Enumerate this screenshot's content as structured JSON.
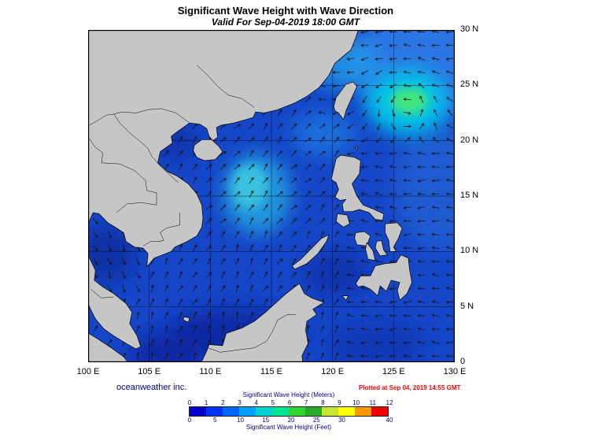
{
  "title": "Significant Wave Height with Wave Direction",
  "subtitle": "Valid For Sep-04-2019 18:00 GMT",
  "credits": {
    "company": "oceanweather inc.",
    "plotted": "Plotted at Sep 04, 2019 14:55 GMT",
    "plotted_color": "#ff0000"
  },
  "axes": {
    "lon_labels": [
      "100 E",
      "105 E",
      "110 E",
      "115 E",
      "120 E",
      "125 E",
      "130 E"
    ],
    "lat_labels": [
      "30 N",
      "25 N",
      "20 N",
      "15 N",
      "10 N",
      "5 N",
      "0"
    ]
  },
  "chart_data": {
    "type": "heatmap",
    "title": "Significant Wave Height with Wave Direction",
    "valid_time": "Sep-04-2019 18:00 GMT",
    "lon_range": [
      100,
      130
    ],
    "lat_range": [
      0,
      30
    ],
    "grid_step_deg": 5,
    "legend": {
      "meters_label": "Significant Wave Height (Meters)",
      "feet_label": "Significant Wave Height (Feet)",
      "meters_ticks": [
        0,
        1,
        2,
        3,
        4,
        5,
        6,
        7,
        8,
        9,
        10,
        11,
        12
      ],
      "feet_ticks": [
        0,
        5,
        10,
        15,
        20,
        25,
        30,
        40
      ],
      "feet_positions": [
        0,
        0.127,
        0.254,
        0.381,
        0.508,
        0.635,
        0.762,
        1.0
      ],
      "colors": [
        "#0000c8",
        "#0032f0",
        "#0064ff",
        "#00a0ff",
        "#00d2d2",
        "#00e696",
        "#32d232",
        "#28aa28",
        "#c8e632",
        "#ffff00",
        "#ff9600",
        "#f00000"
      ]
    },
    "features": [
      {
        "name": "pacific-high",
        "lon": 127.5,
        "lat": 27.0,
        "rx": 6.0,
        "ry": 5.0,
        "color": "#2e7ce8",
        "opacity": 0.9,
        "blur": "b2"
      },
      {
        "name": "pacific-mid",
        "lon": 129.0,
        "lat": 16.0,
        "rx": 4.0,
        "ry": 6.0,
        "color": "#2264d4",
        "opacity": 0.7,
        "blur": "b2"
      },
      {
        "name": "typhoon-halo",
        "lon": 126.1,
        "lat": 23.5,
        "rx": 3.4,
        "ry": 3.0,
        "color": "#00c8e8",
        "opacity": 0.95,
        "blur": "b2"
      },
      {
        "name": "typhoon-core",
        "lon": 126.3,
        "lat": 23.6,
        "rx": 1.5,
        "ry": 1.2,
        "color": "#46e87a",
        "opacity": 0.95,
        "blur": "b1"
      },
      {
        "name": "east-china-sea",
        "lon": 121.0,
        "lat": 27.0,
        "rx": 2.8,
        "ry": 2.4,
        "color": "#20a0e8",
        "opacity": 0.75,
        "blur": "b2"
      },
      {
        "name": "luzon-strait",
        "lon": 119.3,
        "lat": 20.6,
        "rx": 2.6,
        "ry": 2.0,
        "color": "#1e78e0",
        "opacity": 0.8,
        "blur": "b2"
      },
      {
        "name": "scs-central",
        "lon": 113.8,
        "lat": 15.2,
        "rx": 2.8,
        "ry": 3.6,
        "color": "#22a0e0",
        "opacity": 0.9,
        "blur": "b2"
      },
      {
        "name": "scs-central-core",
        "lon": 113.2,
        "lat": 15.9,
        "rx": 1.5,
        "ry": 2.0,
        "color": "#40cce0",
        "opacity": 0.8,
        "blur": "b1"
      },
      {
        "name": "gulf-of-thailand-low",
        "lon": 101.6,
        "lat": 9.8,
        "rx": 2.2,
        "ry": 2.6,
        "color": "#0c2ea0",
        "opacity": 0.9,
        "blur": "b2"
      },
      {
        "name": "gulf-of-tonkin-low",
        "lon": 107.2,
        "lat": 19.9,
        "rx": 1.8,
        "ry": 1.6,
        "color": "#0e30a8",
        "opacity": 0.85,
        "blur": "b2"
      },
      {
        "name": "borneo-coast-low",
        "lon": 112.0,
        "lat": 2.6,
        "rx": 5.5,
        "ry": 2.2,
        "color": "#0a28a0",
        "opacity": 0.9,
        "blur": "b2"
      },
      {
        "name": "sulu-sea-low",
        "lon": 120.3,
        "lat": 8.0,
        "rx": 2.6,
        "ry": 2.0,
        "color": "#102fa8",
        "opacity": 0.8,
        "blur": "b2"
      },
      {
        "name": "celebes-sea-low",
        "lon": 123.5,
        "lat": 1.5,
        "rx": 4.0,
        "ry": 2.2,
        "color": "#0f34b0",
        "opacity": 0.75,
        "blur": "b2"
      },
      {
        "name": "karimata-low",
        "lon": 106.5,
        "lat": 0.8,
        "rx": 3.0,
        "ry": 1.8,
        "color": "#0a249c",
        "opacity": 0.85,
        "blur": "b2"
      }
    ]
  },
  "map": {
    "land_color": "#c6c6c6",
    "ocean_color": "#1546c8",
    "coast_color": "#000000",
    "arrow_color": "#141414",
    "typhoon_center": [
      126.1,
      23.5
    ],
    "land": {
      "mainland-asia": [
        [
          99.5,
          30.6
        ],
        [
          122.3,
          30.6
        ],
        [
          121.9,
          29.3
        ],
        [
          121.5,
          28.2
        ],
        [
          120.2,
          27.0
        ],
        [
          119.7,
          25.9
        ],
        [
          118.9,
          24.8
        ],
        [
          117.9,
          24.0
        ],
        [
          116.9,
          23.4
        ],
        [
          115.5,
          22.8
        ],
        [
          114.4,
          22.5
        ],
        [
          113.7,
          22.6
        ],
        [
          113.5,
          22.1
        ],
        [
          112.9,
          21.9
        ],
        [
          111.9,
          21.6
        ],
        [
          110.9,
          21.4
        ],
        [
          110.5,
          21.2
        ],
        [
          110.6,
          20.3
        ],
        [
          110.2,
          20.0
        ],
        [
          109.9,
          20.4
        ],
        [
          109.7,
          21.1
        ],
        [
          109.1,
          21.5
        ],
        [
          108.3,
          21.6
        ],
        [
          107.4,
          20.9
        ],
        [
          106.8,
          20.4
        ],
        [
          106.9,
          19.8
        ],
        [
          105.9,
          19.0
        ],
        [
          105.7,
          18.0
        ],
        [
          106.5,
          17.2
        ],
        [
          107.3,
          16.8
        ],
        [
          108.2,
          16.1
        ],
        [
          108.9,
          15.2
        ],
        [
          109.3,
          14.2
        ],
        [
          109.4,
          13.0
        ],
        [
          109.3,
          12.2
        ],
        [
          108.9,
          11.4
        ],
        [
          108.1,
          10.9
        ],
        [
          107.1,
          10.4
        ],
        [
          106.8,
          10.0
        ],
        [
          105.4,
          9.4
        ],
        [
          104.8,
          8.6
        ],
        [
          104.9,
          9.8
        ],
        [
          104.5,
          10.3
        ],
        [
          103.8,
          10.4
        ],
        [
          103.1,
          10.9
        ],
        [
          102.9,
          11.7
        ],
        [
          102.2,
          12.2
        ],
        [
          101.6,
          12.6
        ],
        [
          100.9,
          13.4
        ],
        [
          100.4,
          13.5
        ],
        [
          100.0,
          12.5
        ],
        [
          99.8,
          11.3
        ],
        [
          99.9,
          10.0
        ],
        [
          100.2,
          9.2
        ],
        [
          100.6,
          8.3
        ],
        [
          100.5,
          7.4
        ],
        [
          101.2,
          6.8
        ],
        [
          102.1,
          6.2
        ],
        [
          103.1,
          5.3
        ],
        [
          103.6,
          4.5
        ],
        [
          103.4,
          3.5
        ],
        [
          104.0,
          2.4
        ],
        [
          104.3,
          1.4
        ],
        [
          103.9,
          1.2
        ],
        [
          103.1,
          1.7
        ],
        [
          102.2,
          2.3
        ],
        [
          101.3,
          3.0
        ],
        [
          100.6,
          3.9
        ],
        [
          100.1,
          5.0
        ],
        [
          99.7,
          6.4
        ],
        [
          99.5,
          8.0
        ]
      ],
      "sumatra": [
        [
          99.5,
          3.0
        ],
        [
          100.8,
          2.1
        ],
        [
          101.9,
          1.3
        ],
        [
          102.9,
          0.5
        ],
        [
          103.5,
          -0.3
        ],
        [
          99.5,
          -0.3
        ]
      ],
      "hainan": [
        [
          108.7,
          19.6
        ],
        [
          109.3,
          20.1
        ],
        [
          110.1,
          20.1
        ],
        [
          110.7,
          19.5
        ],
        [
          111.0,
          19.0
        ],
        [
          110.4,
          18.3
        ],
        [
          109.5,
          18.2
        ],
        [
          108.9,
          18.5
        ],
        [
          108.6,
          19.1
        ]
      ],
      "taiwan": [
        [
          120.1,
          23.1
        ],
        [
          120.3,
          23.9
        ],
        [
          121.1,
          25.1
        ],
        [
          121.7,
          25.3
        ],
        [
          122.0,
          24.9
        ],
        [
          121.5,
          23.7
        ],
        [
          121.1,
          22.7
        ],
        [
          120.9,
          21.9
        ],
        [
          120.5,
          22.5
        ],
        [
          120.2,
          22.7
        ]
      ],
      "luzon": [
        [
          120.3,
          16.2
        ],
        [
          119.9,
          16.5
        ],
        [
          120.3,
          18.4
        ],
        [
          120.7,
          18.7
        ],
        [
          121.8,
          18.5
        ],
        [
          122.3,
          18.2
        ],
        [
          122.2,
          17.0
        ],
        [
          121.6,
          16.1
        ],
        [
          122.0,
          15.0
        ],
        [
          122.5,
          14.2
        ],
        [
          123.4,
          13.8
        ],
        [
          124.2,
          13.4
        ],
        [
          124.1,
          12.8
        ],
        [
          123.5,
          12.9
        ],
        [
          123.0,
          13.5
        ],
        [
          122.2,
          13.8
        ],
        [
          121.6,
          13.6
        ],
        [
          120.9,
          13.6
        ],
        [
          120.8,
          14.3
        ],
        [
          121.1,
          14.7
        ],
        [
          120.6,
          14.6
        ],
        [
          120.2,
          14.9
        ],
        [
          120.5,
          15.6
        ]
      ],
      "mindoro": [
        [
          120.4,
          13.4
        ],
        [
          121.2,
          13.3
        ],
        [
          121.4,
          12.5
        ],
        [
          120.9,
          12.2
        ],
        [
          120.3,
          12.7
        ]
      ],
      "palawan": [
        [
          116.9,
          8.4
        ],
        [
          117.9,
          8.9
        ],
        [
          118.8,
          9.8
        ],
        [
          119.5,
          10.9
        ],
        [
          119.7,
          11.5
        ],
        [
          119.1,
          11.2
        ],
        [
          118.3,
          10.3
        ],
        [
          117.4,
          9.3
        ],
        [
          116.7,
          8.7
        ]
      ],
      "panay": [
        [
          121.9,
          11.7
        ],
        [
          122.6,
          11.8
        ],
        [
          123.1,
          11.4
        ],
        [
          122.8,
          10.5
        ],
        [
          122.0,
          10.6
        ],
        [
          121.8,
          11.2
        ]
      ],
      "negros": [
        [
          122.8,
          10.8
        ],
        [
          123.3,
          10.1
        ],
        [
          123.5,
          9.2
        ],
        [
          122.9,
          9.3
        ],
        [
          122.7,
          10.2
        ]
      ],
      "cebu-bohol": [
        [
          123.6,
          10.9
        ],
        [
          124.0,
          11.0
        ],
        [
          124.2,
          10.1
        ],
        [
          124.5,
          9.7
        ],
        [
          123.9,
          9.6
        ],
        [
          123.5,
          10.3
        ]
      ],
      "samar-leyte": [
        [
          124.3,
          12.5
        ],
        [
          125.3,
          12.6
        ],
        [
          125.7,
          12.1
        ],
        [
          125.4,
          11.2
        ],
        [
          125.0,
          10.4
        ],
        [
          125.2,
          10.0
        ],
        [
          124.7,
          10.0
        ],
        [
          124.6,
          11.0
        ],
        [
          124.3,
          11.7
        ]
      ],
      "mindanao": [
        [
          121.9,
          7.1
        ],
        [
          122.3,
          7.8
        ],
        [
          123.1,
          7.8
        ],
        [
          123.5,
          8.7
        ],
        [
          124.3,
          8.9
        ],
        [
          125.2,
          9.0
        ],
        [
          125.6,
          9.7
        ],
        [
          126.2,
          9.4
        ],
        [
          126.3,
          8.4
        ],
        [
          126.5,
          7.2
        ],
        [
          126.1,
          6.2
        ],
        [
          125.5,
          5.6
        ],
        [
          125.3,
          6.5
        ],
        [
          125.5,
          7.2
        ],
        [
          124.8,
          7.4
        ],
        [
          124.4,
          6.4
        ],
        [
          123.9,
          6.9
        ],
        [
          123.7,
          6.0
        ],
        [
          123.1,
          6.6
        ],
        [
          122.5,
          6.9
        ],
        [
          122.1,
          6.8
        ]
      ],
      "borneo": [
        [
          109.1,
          -0.4
        ],
        [
          109.7,
          1.0
        ],
        [
          109.9,
          1.6
        ],
        [
          111.0,
          1.5
        ],
        [
          111.3,
          2.6
        ],
        [
          112.6,
          3.1
        ],
        [
          113.6,
          3.7
        ],
        [
          114.5,
          4.5
        ],
        [
          115.2,
          5.2
        ],
        [
          116.1,
          6.1
        ],
        [
          116.9,
          6.8
        ],
        [
          117.3,
          7.1
        ],
        [
          117.7,
          6.2
        ],
        [
          118.3,
          5.8
        ],
        [
          119.3,
          5.4
        ],
        [
          118.4,
          4.8
        ],
        [
          118.7,
          4.3
        ],
        [
          117.9,
          3.7
        ],
        [
          117.8,
          2.9
        ],
        [
          118.0,
          1.7
        ],
        [
          117.5,
          0.6
        ],
        [
          117.6,
          -0.4
        ]
      ],
      "natuna": [
        [
          107.8,
          4.1
        ],
        [
          108.3,
          4.0
        ],
        [
          108.2,
          3.6
        ],
        [
          107.8,
          3.8
        ]
      ],
      "jolo": [
        [
          120.8,
          6.0
        ],
        [
          121.3,
          6.0
        ],
        [
          121.1,
          5.6
        ]
      ],
      "babuyan": [
        [
          121.8,
          19.4
        ],
        [
          122.1,
          19.4
        ],
        [
          122.0,
          19.2
        ]
      ]
    },
    "borders": {
      "china-vietnam": [
        [
          108.3,
          21.6
        ],
        [
          107.2,
          22.5
        ],
        [
          106.0,
          22.9
        ],
        [
          104.9,
          22.8
        ],
        [
          103.9,
          22.5
        ],
        [
          102.8,
          22.6
        ],
        [
          102.1,
          22.4
        ],
        [
          101.5,
          22.3
        ],
        [
          100.9,
          21.9
        ],
        [
          100.1,
          21.4
        ]
      ],
      "vietnam-laos": [
        [
          102.1,
          22.4
        ],
        [
          102.6,
          21.6
        ],
        [
          103.3,
          20.8
        ],
        [
          104.3,
          19.9
        ],
        [
          104.9,
          19.3
        ],
        [
          105.2,
          18.6
        ],
        [
          106.0,
          17.6
        ],
        [
          106.7,
          16.9
        ],
        [
          107.4,
          16.2
        ]
      ],
      "laos-thailand": [
        [
          100.1,
          20.2
        ],
        [
          100.6,
          19.4
        ],
        [
          101.2,
          18.9
        ],
        [
          101.1,
          18.0
        ],
        [
          102.6,
          17.9
        ],
        [
          103.8,
          17.3
        ],
        [
          104.7,
          16.4
        ],
        [
          104.8,
          15.5
        ],
        [
          105.6,
          15.3
        ]
      ],
      "cambodia-north": [
        [
          102.3,
          13.5
        ],
        [
          103.2,
          14.3
        ],
        [
          104.4,
          14.4
        ],
        [
          105.6,
          14.2
        ],
        [
          105.6,
          15.3
        ]
      ],
      "cambodia-vietnam": [
        [
          104.5,
          10.5
        ],
        [
          105.1,
          10.9
        ],
        [
          105.8,
          10.9
        ],
        [
          106.2,
          11.0
        ],
        [
          105.9,
          11.7
        ],
        [
          106.4,
          12.1
        ],
        [
          107.5,
          12.4
        ],
        [
          107.5,
          13.5
        ]
      ],
      "thailand-malaysia": [
        [
          100.2,
          6.6
        ],
        [
          101.1,
          5.8
        ],
        [
          102.1,
          5.9
        ]
      ],
      "kalimantan": [
        [
          109.8,
          1.3
        ],
        [
          110.8,
          0.9
        ],
        [
          112.2,
          1.1
        ],
        [
          113.6,
          1.3
        ],
        [
          114.6,
          1.9
        ],
        [
          115.1,
          2.8
        ],
        [
          115.5,
          3.8
        ],
        [
          116.3,
          4.3
        ],
        [
          117.0,
          4.3
        ]
      ],
      "pearl-river": [
        [
          113.6,
          23.0
        ],
        [
          112.6,
          23.8
        ],
        [
          111.5,
          24.1
        ],
        [
          110.6,
          24.9
        ],
        [
          109.8,
          25.9
        ],
        [
          108.9,
          26.8
        ]
      ]
    }
  }
}
